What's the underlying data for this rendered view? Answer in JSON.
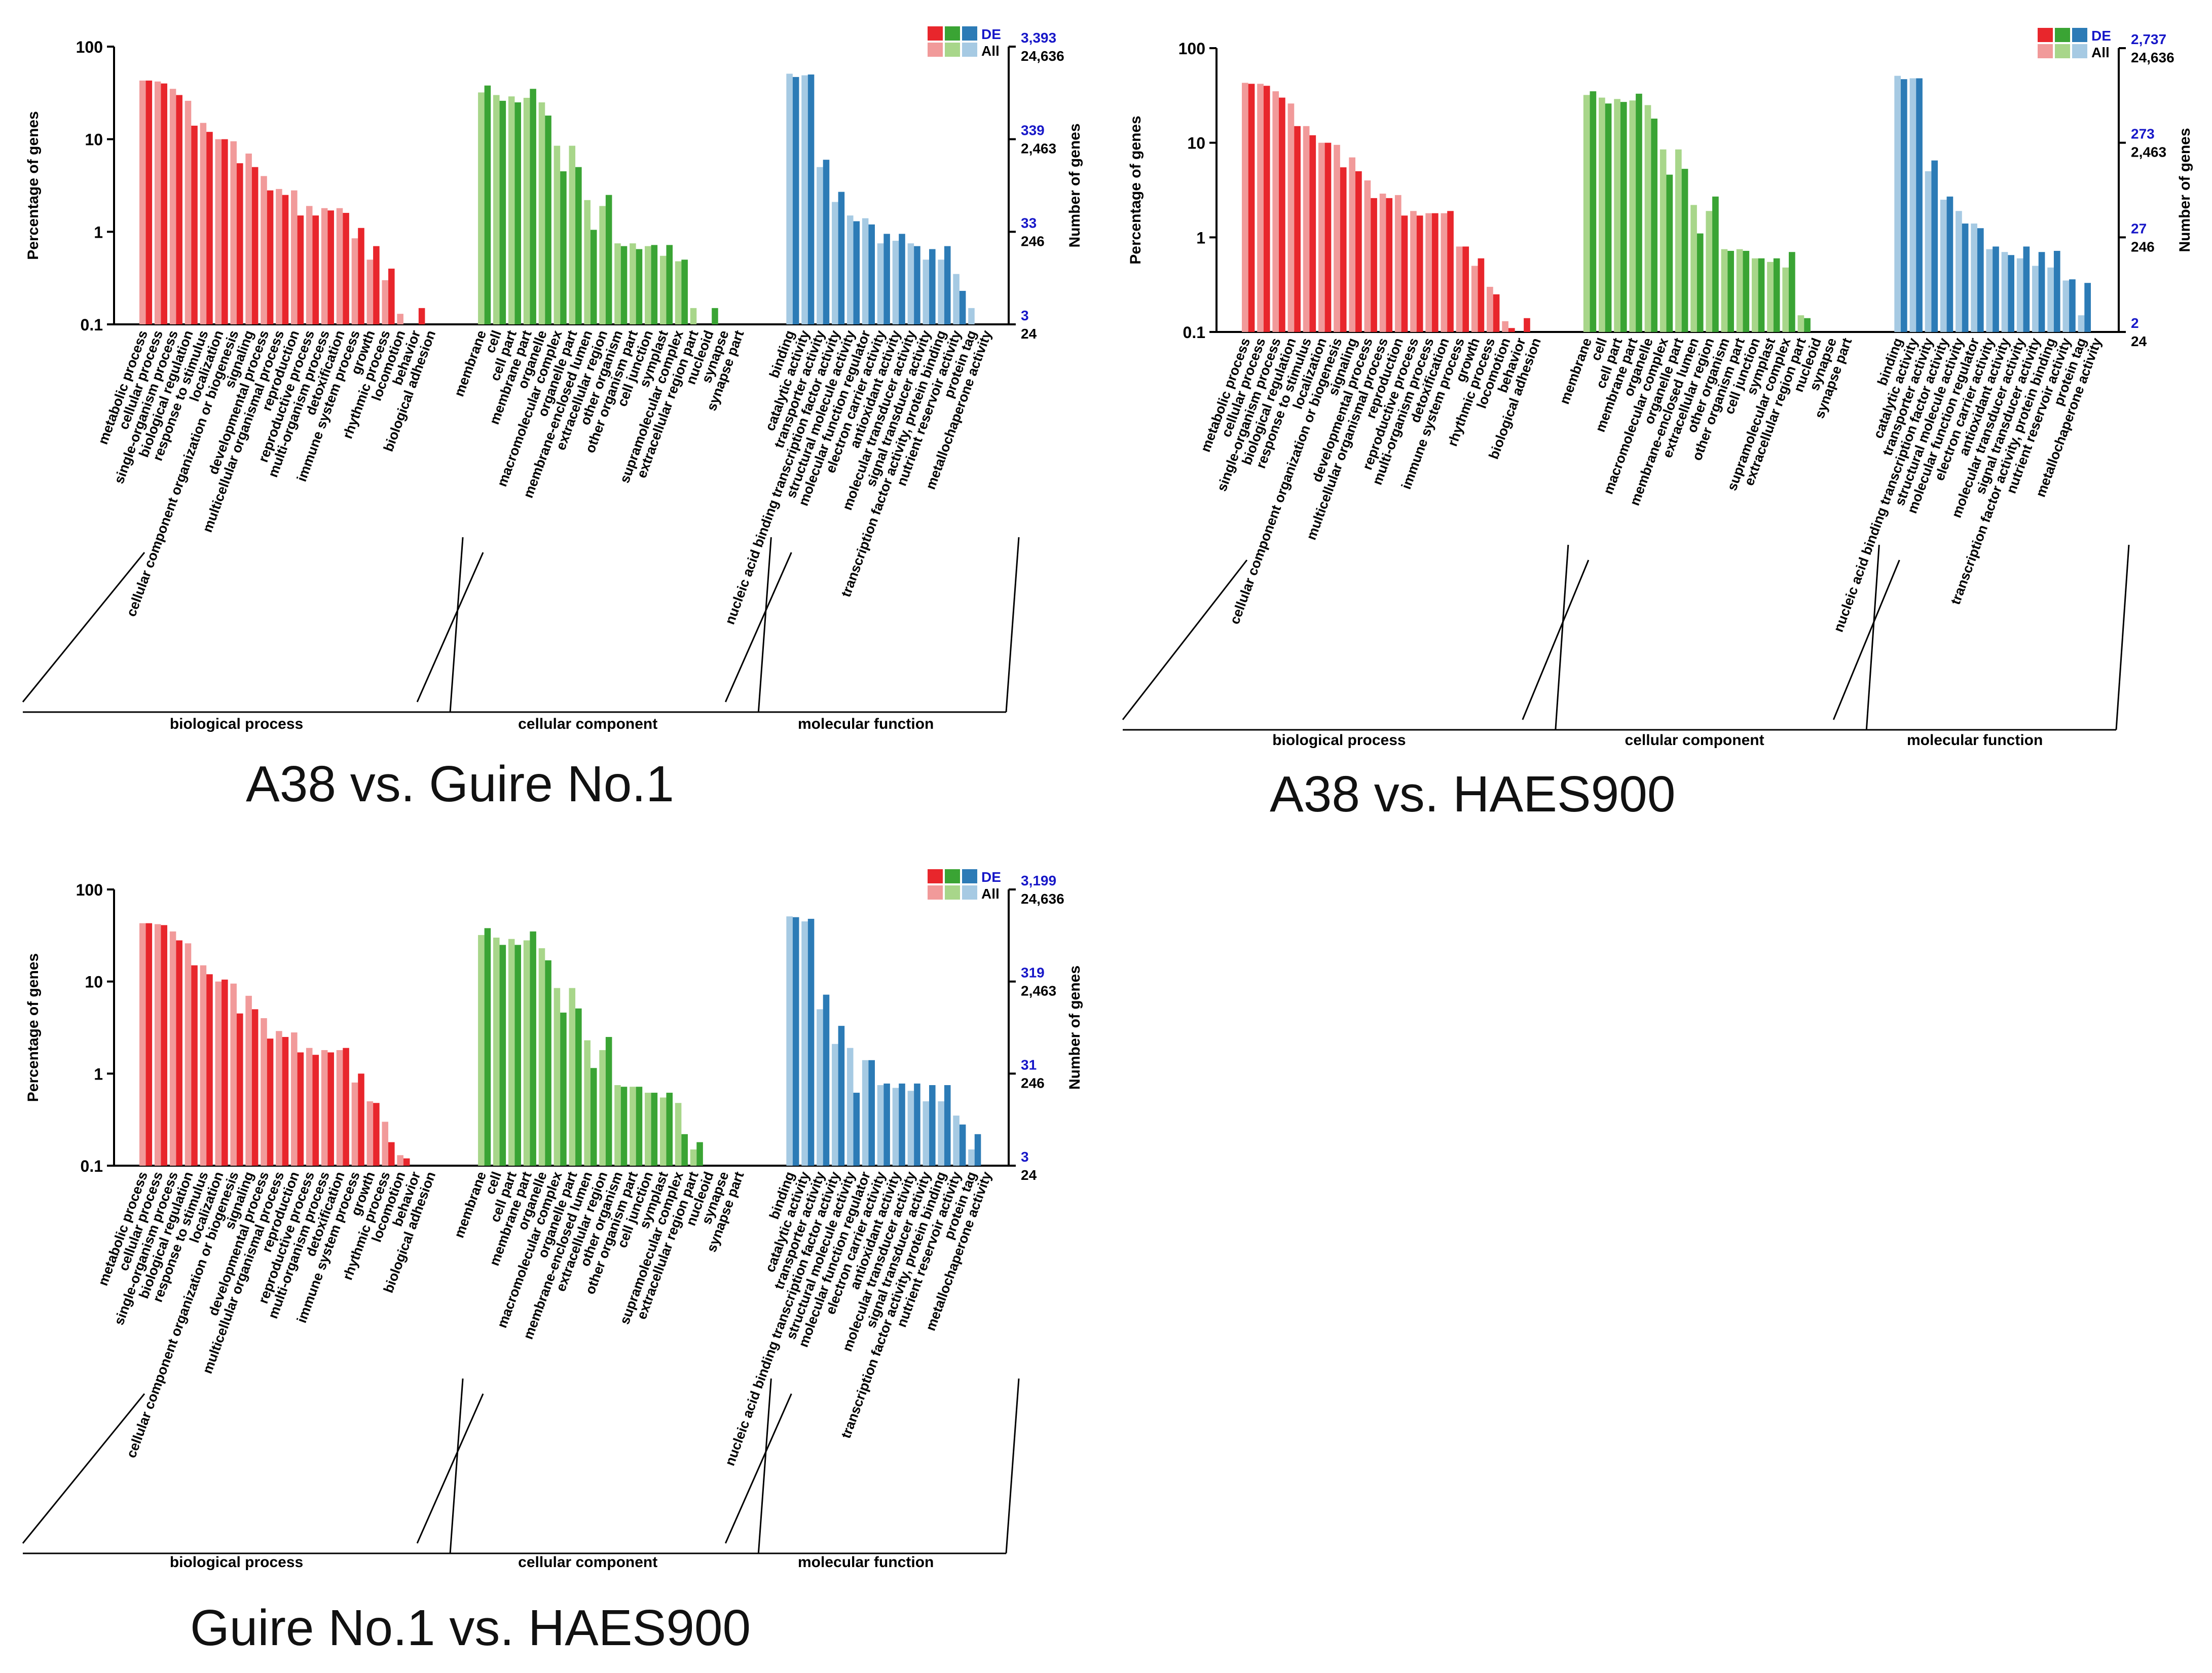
{
  "legend": {
    "de_label": "DE",
    "all_label": "All"
  },
  "colors": {
    "bp_de": "#e8262c",
    "bp_all": "#f19a9a",
    "cc_de": "#3aa434",
    "cc_all": "#a8d68a",
    "mf_de": "#2c7bb6",
    "mf_all": "#a6cae3",
    "de_text": "#1717c8",
    "axis": "#000000"
  },
  "chart_data": [
    {
      "type": "bar",
      "title": "A38 vs. Guire No.1",
      "ylabel": "Percentage of genes",
      "ylabel_right": "Number of genes",
      "yscale": "log",
      "ylim": [
        0.1,
        100
      ],
      "yticks": [
        "100",
        "10",
        "1",
        "0.1"
      ],
      "right_ticks_de": [
        "3,393",
        "339",
        "33",
        "3"
      ],
      "right_ticks_all": [
        "24,636",
        "2,463",
        "246",
        "24"
      ],
      "groups": [
        {
          "name": "biological process",
          "key": "bp",
          "categories": [
            "metabolic process",
            "cellular process",
            "single-organism process",
            "biological regulation",
            "response to stimulus",
            "localization",
            "cellular component organization or biogenesis",
            "signaling",
            "developmental process",
            "multicellular organismal process",
            "reproduction",
            "reproductive process",
            "multi-organism process",
            "detoxification",
            "immune system process",
            "growth",
            "rhythmic process",
            "locomotion",
            "behavior",
            "biological adhesion"
          ],
          "all": [
            43,
            42,
            35,
            26,
            15,
            10,
            9.5,
            7,
            4,
            2.9,
            2.8,
            1.9,
            1.8,
            1.8,
            0.85,
            0.5,
            0.3,
            0.13,
            0,
            0
          ],
          "de": [
            43,
            40,
            30,
            14,
            12,
            10,
            5.5,
            5,
            2.8,
            2.5,
            1.5,
            1.5,
            1.7,
            1.6,
            1.1,
            0.7,
            0.4,
            0,
            0.15,
            0
          ]
        },
        {
          "name": "cellular component",
          "key": "cc",
          "categories": [
            "membrane",
            "cell",
            "cell part",
            "membrane part",
            "organelle",
            "macromolecular complex",
            "organelle part",
            "membrane-enclosed lumen",
            "extracellular region",
            "other organism",
            "other organism part",
            "cell junction",
            "symplast",
            "supramolecular complex",
            "extracellular region part",
            "nucleoid",
            "synapse",
            "synapse part"
          ],
          "all": [
            32,
            30,
            29,
            28,
            25,
            8.5,
            8.5,
            2.2,
            1.9,
            0.75,
            0.75,
            0.7,
            0.55,
            0.48,
            0.15,
            0,
            0,
            0
          ],
          "de": [
            38,
            26,
            25,
            35,
            18,
            4.5,
            5,
            1.05,
            2.5,
            0.7,
            0.65,
            0.72,
            0.72,
            0.5,
            0,
            0.15,
            0,
            0
          ]
        },
        {
          "name": "molecular function",
          "key": "mf",
          "categories": [
            "binding",
            "catalytic activity",
            "transporter activity",
            "nucleic acid binding transcription factor activity",
            "structural molecule activity",
            "molecular function regulator",
            "electron carrier activity",
            "antioxidant activity",
            "molecular transducer activity",
            "signal transducer activity",
            "transcription factor activity, protein binding",
            "nutrient reservoir activity",
            "protein tag",
            "metallochaperone activity"
          ],
          "all": [
            51,
            49,
            5,
            2.1,
            1.5,
            1.4,
            0.75,
            0.8,
            0.75,
            0.5,
            0.5,
            0.35,
            0.15,
            0
          ],
          "de": [
            47,
            50,
            6,
            2.7,
            1.3,
            1.2,
            0.95,
            0.95,
            0.7,
            0.65,
            0.7,
            0.23,
            0,
            0
          ]
        }
      ]
    },
    {
      "type": "bar",
      "title": "A38 vs. HAES900",
      "ylabel": "Percentage of genes",
      "ylabel_right": "Number of genes",
      "yscale": "log",
      "ylim": [
        0.1,
        100
      ],
      "yticks": [
        "100",
        "10",
        "1",
        "0.1"
      ],
      "right_ticks_de": [
        "2,737",
        "273",
        "27",
        "2"
      ],
      "right_ticks_all": [
        "24,636",
        "2,463",
        "246",
        "24"
      ],
      "groups": [
        {
          "name": "biological process",
          "key": "bp",
          "categories": [
            "metabolic process",
            "cellular process",
            "single-organism process",
            "biological regulation",
            "response to stimulus",
            "localization",
            "cellular component organization or biogenesis",
            "signaling",
            "developmental process",
            "multicellular organismal process",
            "reproduction",
            "reproductive process",
            "multi-organism process",
            "detoxification",
            "immune system process",
            "growth",
            "rhythmic process",
            "locomotion",
            "behavior",
            "biological adhesion"
          ],
          "all": [
            43,
            42,
            35,
            26,
            15,
            10,
            9.5,
            7,
            4,
            2.9,
            2.8,
            1.9,
            1.8,
            1.8,
            0.8,
            0.5,
            0.3,
            0.13,
            0,
            0
          ],
          "de": [
            42,
            40,
            30,
            15,
            12,
            10,
            5.5,
            5,
            2.6,
            2.6,
            1.7,
            1.7,
            1.8,
            1.9,
            0.8,
            0.6,
            0.25,
            0.11,
            0.14,
            0
          ]
        },
        {
          "name": "cellular component",
          "key": "cc",
          "categories": [
            "membrane",
            "cell",
            "cell part",
            "membrane part",
            "organelle",
            "macromolecular complex",
            "organelle part",
            "membrane-enclosed lumen",
            "extracellular region",
            "other organism",
            "other organism part",
            "cell junction",
            "symplast",
            "supramolecular complex",
            "extracellular region part",
            "nucleoid",
            "synapse",
            "synapse part"
          ],
          "all": [
            32,
            30,
            29,
            28,
            25,
            8.5,
            8.5,
            2.2,
            1.9,
            0.75,
            0.75,
            0.6,
            0.55,
            0.48,
            0.15,
            0,
            0,
            0
          ],
          "de": [
            35,
            26,
            27,
            33,
            18,
            4.6,
            5.3,
            1.1,
            2.7,
            0.72,
            0.72,
            0.6,
            0.6,
            0.7,
            0.14,
            0,
            0,
            0
          ]
        },
        {
          "name": "molecular function",
          "key": "mf",
          "categories": [
            "binding",
            "catalytic activity",
            "transporter activity",
            "nucleic acid binding transcription factor activity",
            "structural molecule activity",
            "molecular function regulator",
            "electron carrier activity",
            "antioxidant activity",
            "molecular transducer activity",
            "signal transducer activity",
            "transcription factor activity, protein binding",
            "nutrient reservoir activity",
            "protein tag",
            "metallochaperone activity"
          ],
          "all": [
            51,
            48,
            5,
            2.5,
            1.9,
            1.4,
            0.75,
            0.7,
            0.6,
            0.5,
            0.48,
            0.35,
            0.15,
            0
          ],
          "de": [
            47,
            48,
            6.5,
            2.7,
            1.4,
            1.25,
            0.8,
            0.65,
            0.8,
            0.7,
            0.72,
            0.36,
            0.33,
            0
          ]
        }
      ]
    },
    {
      "type": "bar",
      "title": "Guire No.1 vs. HAES900",
      "ylabel": "Percentage of genes",
      "ylabel_right": "Number of genes",
      "yscale": "log",
      "ylim": [
        0.1,
        100
      ],
      "yticks": [
        "100",
        "10",
        "1",
        "0.1"
      ],
      "right_ticks_de": [
        "3,199",
        "319",
        "31",
        "3"
      ],
      "right_ticks_all": [
        "24,636",
        "2,463",
        "246",
        "24"
      ],
      "groups": [
        {
          "name": "biological process",
          "key": "bp",
          "categories": [
            "metabolic process",
            "cellular process",
            "single-organism process",
            "biological regulation",
            "response to stimulus",
            "localization",
            "cellular component organization or biogenesis",
            "signaling",
            "developmental process",
            "multicellular organismal process",
            "reproduction",
            "reproductive process",
            "multi-organism process",
            "detoxification",
            "immune system process",
            "growth",
            "rhythmic process",
            "locomotion",
            "behavior",
            "biological adhesion"
          ],
          "all": [
            43,
            42,
            35,
            26,
            15,
            10,
            9.5,
            7,
            4,
            2.9,
            2.8,
            1.9,
            1.8,
            1.8,
            0.8,
            0.5,
            0.3,
            0.13,
            0,
            0
          ],
          "de": [
            43,
            41,
            28,
            15,
            12,
            10.5,
            4.5,
            5,
            2.4,
            2.5,
            1.7,
            1.6,
            1.7,
            1.9,
            1.0,
            0.48,
            0.18,
            0.12,
            0,
            0
          ]
        },
        {
          "name": "cellular component",
          "key": "cc",
          "categories": [
            "membrane",
            "cell",
            "cell part",
            "membrane part",
            "organelle",
            "macromolecular complex",
            "organelle part",
            "membrane-enclosed lumen",
            "extracellular region",
            "other organism",
            "other organism part",
            "cell junction",
            "symplast",
            "supramolecular complex",
            "extracellular region part",
            "nucleoid",
            "synapse",
            "synapse part"
          ],
          "all": [
            32,
            30,
            29,
            28,
            23,
            8.5,
            8.5,
            2.3,
            1.8,
            0.75,
            0.72,
            0.62,
            0.55,
            0.48,
            0.15,
            0,
            0,
            0
          ],
          "de": [
            38,
            25,
            25,
            35,
            17,
            4.6,
            5.1,
            1.15,
            2.5,
            0.72,
            0.72,
            0.62,
            0.62,
            0.22,
            0.18,
            0,
            0,
            0
          ]
        },
        {
          "name": "molecular function",
          "key": "mf",
          "categories": [
            "binding",
            "catalytic activity",
            "transporter activity",
            "nucleic acid binding transcription factor activity",
            "structural molecule activity",
            "molecular function regulator",
            "electron carrier activity",
            "antioxidant activity",
            "molecular transducer activity",
            "signal transducer activity",
            "transcription factor activity, protein binding",
            "nutrient reservoir activity",
            "protein tag",
            "metallochaperone activity"
          ],
          "all": [
            51,
            45,
            5,
            2.1,
            1.9,
            1.4,
            0.75,
            0.7,
            0.65,
            0.5,
            0.5,
            0.35,
            0.15,
            0
          ],
          "de": [
            50,
            48,
            7.2,
            3.3,
            0.62,
            1.4,
            0.78,
            0.78,
            0.78,
            0.75,
            0.75,
            0.28,
            0.22,
            0
          ]
        }
      ]
    }
  ]
}
